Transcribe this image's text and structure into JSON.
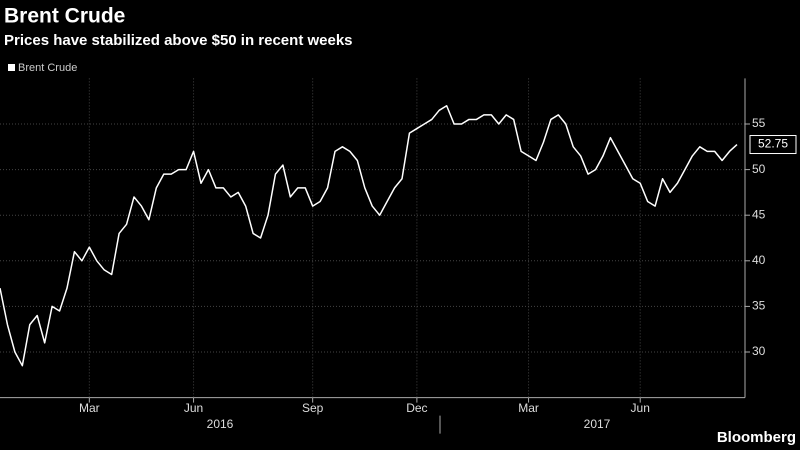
{
  "chart_data": {
    "type": "line",
    "title": "Brent Crude",
    "subtitle": "Prices have stabilized above $50 in recent weeks",
    "source": "Bloomberg",
    "categories": [
      null,
      null,
      null,
      null,
      null,
      null,
      null,
      null,
      null,
      null,
      null,
      null,
      "Mar",
      null,
      null,
      null,
      null,
      null,
      null,
      null,
      null,
      null,
      null,
      null,
      null,
      null,
      "Jun",
      null,
      null,
      null,
      null,
      null,
      null,
      null,
      null,
      null,
      null,
      null,
      null,
      null,
      null,
      null,
      "Sep",
      null,
      null,
      null,
      null,
      null,
      null,
      null,
      null,
      null,
      null,
      null,
      null,
      null,
      "Dec",
      null,
      null,
      null,
      null,
      null,
      null,
      null,
      null,
      null,
      null,
      null,
      null,
      null,
      null,
      "Mar",
      null,
      null,
      null,
      null,
      null,
      null,
      null,
      null,
      null,
      null,
      null,
      null,
      null,
      null,
      "Jun",
      null,
      null,
      null,
      null,
      null,
      null,
      null,
      null,
      null,
      null,
      null,
      null,
      null
    ],
    "x_group_labels": [
      "2016",
      "2017"
    ],
    "series": [
      {
        "name": "Brent Crude",
        "color": "#ffffff",
        "values": [
          37,
          33,
          30,
          28.5,
          33,
          34,
          31,
          35,
          34.5,
          37,
          41,
          40,
          41.5,
          40,
          39,
          38.5,
          43,
          44,
          47,
          46,
          44.5,
          48,
          49.5,
          49.5,
          50,
          50,
          52,
          48.5,
          50,
          48,
          48,
          47,
          47.5,
          46,
          43,
          42.5,
          45,
          49.5,
          50.5,
          47,
          48,
          48,
          46,
          46.5,
          48,
          52,
          52.5,
          52,
          51,
          48,
          46,
          45,
          46.5,
          48,
          49,
          54,
          54.5,
          55,
          55.5,
          56.5,
          57,
          55,
          55,
          55.5,
          55.5,
          56,
          56,
          55,
          56,
          55.5,
          52,
          51.5,
          51,
          53,
          55.5,
          56,
          55,
          52.5,
          51.5,
          49.5,
          50,
          51.5,
          53.5,
          52,
          50.5,
          49,
          48.5,
          46.5,
          46,
          49,
          47.5,
          48.5,
          50,
          51.5,
          52.5,
          52,
          52,
          51,
          52,
          52.75
        ]
      }
    ],
    "ylim": [
      25,
      60
    ],
    "yticks": [
      30,
      35,
      40,
      45,
      50,
      55
    ],
    "grid": true
  }
}
